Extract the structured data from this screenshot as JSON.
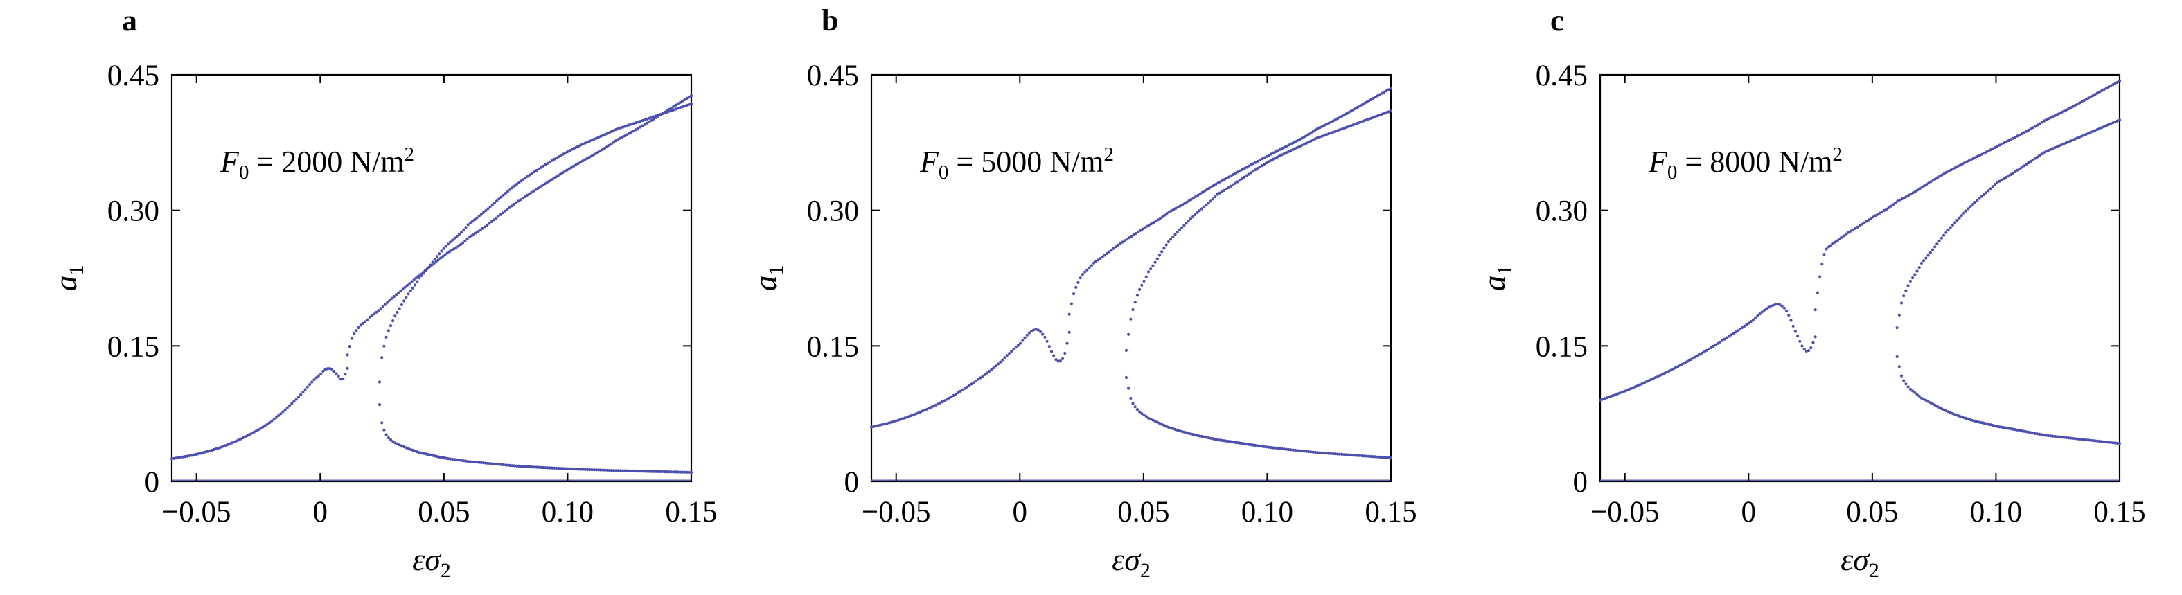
{
  "panels": [
    {
      "label": "a",
      "annotation": {
        "var": "F",
        "sub": "0",
        "text": " = 2000 N/m",
        "sup": "2"
      },
      "xlabel": {
        "greek1": "ε",
        "greek2": "σ",
        "sub": "2"
      },
      "ylabel": {
        "var": "a",
        "sub": "1"
      },
      "xticks": [
        "−0.05",
        "0",
        "0.05",
        "0.10",
        "0.15"
      ],
      "yticks": [
        "0",
        "0.15",
        "0.30",
        "0.45"
      ]
    },
    {
      "label": "b",
      "annotation": {
        "var": "F",
        "sub": "0",
        "text": " = 5000 N/m",
        "sup": "2"
      },
      "xlabel": {
        "greek1": "ε",
        "greek2": "σ",
        "sub": "2"
      },
      "ylabel": {
        "var": "a",
        "sub": "1"
      },
      "xticks": [
        "−0.05",
        "0",
        "0.05",
        "0.10",
        "0.15"
      ],
      "yticks": [
        "0",
        "0.15",
        "0.30",
        "0.45"
      ]
    },
    {
      "label": "c",
      "annotation": {
        "var": "F",
        "sub": "0",
        "text": " = 8000 N/m",
        "sup": "2"
      },
      "xlabel": {
        "greek1": "ε",
        "greek2": "σ",
        "sub": "2"
      },
      "ylabel": {
        "var": "a",
        "sub": "1"
      },
      "xticks": [
        "−0.05",
        "0",
        "0.05",
        "0.10",
        "0.15"
      ],
      "yticks": [
        "0",
        "0.15",
        "0.30",
        "0.45"
      ]
    }
  ],
  "chart_data": [
    {
      "type": "scatter",
      "xlim": [
        -0.06,
        0.15
      ],
      "ylim": [
        0,
        0.45
      ],
      "grid": false,
      "color": "#4b4fae",
      "series": [
        {
          "x": [
            -0.06,
            -0.05,
            -0.04,
            -0.03,
            -0.02,
            -0.01,
            0,
            0.004,
            0.007,
            0.009,
            0.011
          ],
          "values": [
            0.025,
            0.03,
            0.038,
            0.05,
            0.066,
            0.09,
            0.118,
            0.125,
            0.118,
            0.113,
            0.125
          ]
        },
        {
          "x": [
            0.011,
            0.013,
            0.016,
            0.02,
            0.03,
            0.04,
            0.05,
            0.06,
            0.08,
            0.1,
            0.12,
            0.15
          ],
          "values": [
            0.14,
            0.16,
            0.172,
            0.182,
            0.205,
            0.228,
            0.25,
            0.27,
            0.31,
            0.345,
            0.378,
            0.427
          ]
        },
        {
          "x": [
            0.024,
            0.025,
            0.027,
            0.03,
            0.035,
            0.04,
            0.05,
            0.06,
            0.08,
            0.1,
            0.12,
            0.15
          ],
          "values": [
            0.11,
            0.14,
            0.163,
            0.182,
            0.205,
            0.225,
            0.258,
            0.285,
            0.33,
            0.365,
            0.39,
            0.418
          ]
        },
        {
          "x": [
            0.024,
            0.025,
            0.027,
            0.03,
            0.035,
            0.04,
            0.05,
            0.06,
            0.08,
            0.1,
            0.12,
            0.15
          ],
          "values": [
            0.085,
            0.063,
            0.05,
            0.043,
            0.037,
            0.032,
            0.026,
            0.022,
            0.017,
            0.014,
            0.012,
            0.01
          ]
        }
      ]
    },
    {
      "type": "scatter",
      "xlim": [
        -0.06,
        0.15
      ],
      "ylim": [
        0,
        0.45
      ],
      "grid": false,
      "color": "#4b4fae",
      "series": [
        {
          "x": [
            -0.06,
            -0.05,
            -0.04,
            -0.03,
            -0.02,
            -0.01,
            0,
            0.006,
            0.01,
            0.014,
            0.016,
            0.018,
            0.02
          ],
          "values": [
            0.06,
            0.067,
            0.077,
            0.09,
            0.107,
            0.127,
            0.152,
            0.168,
            0.16,
            0.138,
            0.133,
            0.14,
            0.165
          ]
        },
        {
          "x": [
            0.02,
            0.022,
            0.025,
            0.03,
            0.04,
            0.05,
            0.06,
            0.08,
            0.1,
            0.12,
            0.15
          ],
          "values": [
            0.185,
            0.21,
            0.228,
            0.242,
            0.262,
            0.28,
            0.298,
            0.33,
            0.36,
            0.39,
            0.435
          ]
        },
        {
          "x": [
            0.043,
            0.045,
            0.048,
            0.052,
            0.06,
            0.07,
            0.08,
            0.1,
            0.12,
            0.15
          ],
          "values": [
            0.145,
            0.183,
            0.21,
            0.232,
            0.265,
            0.293,
            0.318,
            0.353,
            0.38,
            0.41
          ]
        },
        {
          "x": [
            0.043,
            0.045,
            0.048,
            0.052,
            0.06,
            0.07,
            0.08,
            0.1,
            0.12,
            0.15
          ],
          "values": [
            0.115,
            0.09,
            0.078,
            0.07,
            0.06,
            0.052,
            0.046,
            0.038,
            0.032,
            0.026
          ]
        }
      ]
    },
    {
      "type": "scatter",
      "xlim": [
        -0.06,
        0.15
      ],
      "ylim": [
        0,
        0.45
      ],
      "grid": false,
      "color": "#4b4fae",
      "series": [
        {
          "x": [
            -0.06,
            -0.05,
            -0.04,
            -0.03,
            -0.02,
            -0.01,
            0,
            0.01,
            0.015,
            0.02,
            0.023,
            0.025,
            0.027
          ],
          "values": [
            0.09,
            0.1,
            0.112,
            0.125,
            0.14,
            0.157,
            0.175,
            0.195,
            0.19,
            0.16,
            0.145,
            0.147,
            0.16
          ]
        },
        {
          "x": [
            0.027,
            0.029,
            0.031,
            0.034,
            0.04,
            0.05,
            0.06,
            0.08,
            0.1,
            0.12,
            0.15
          ],
          "values": [
            0.19,
            0.23,
            0.255,
            0.263,
            0.275,
            0.292,
            0.31,
            0.342,
            0.37,
            0.4,
            0.443
          ]
        },
        {
          "x": [
            0.06,
            0.062,
            0.065,
            0.07,
            0.08,
            0.09,
            0.1,
            0.12,
            0.15
          ],
          "values": [
            0.17,
            0.2,
            0.22,
            0.242,
            0.276,
            0.305,
            0.33,
            0.365,
            0.4
          ]
        },
        {
          "x": [
            0.06,
            0.062,
            0.065,
            0.07,
            0.08,
            0.09,
            0.1,
            0.12,
            0.15
          ],
          "values": [
            0.138,
            0.115,
            0.103,
            0.092,
            0.078,
            0.068,
            0.061,
            0.051,
            0.042
          ]
        }
      ]
    }
  ]
}
